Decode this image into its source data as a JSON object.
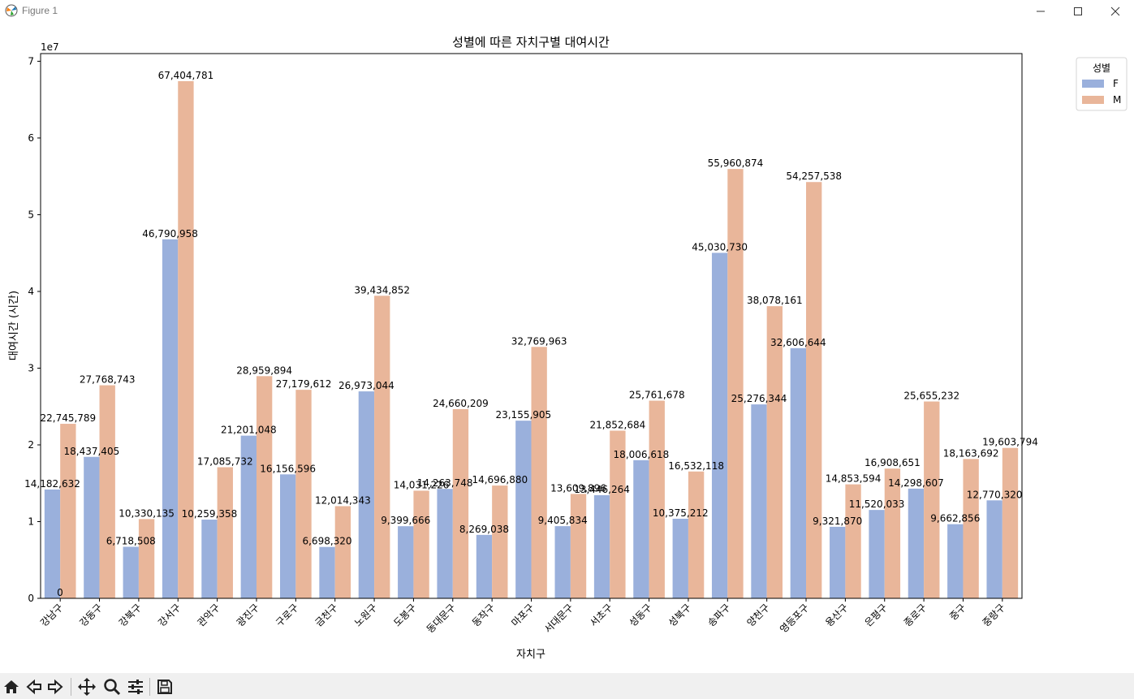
{
  "window": {
    "title": "Figure 1"
  },
  "colors": {
    "F": "#9ab0dc",
    "M": "#e9b69a"
  },
  "toolbar": {
    "buttons": [
      "home-icon",
      "back-icon",
      "forward-icon",
      "pan-icon",
      "zoom-icon",
      "configure-subplots-icon",
      "save-icon"
    ]
  },
  "chart_data": {
    "type": "bar",
    "title": "성별에 따른 자치구별 대여시간",
    "xlabel": "자치구",
    "ylabel": "대여시간 (시간)",
    "yscale_label": "1e7",
    "ylim": [
      0,
      71000000
    ],
    "yticks": [
      0,
      1,
      2,
      3,
      4,
      5,
      6,
      7
    ],
    "legend": {
      "title": "성별",
      "placement": "outside top-right"
    },
    "categories": [
      "강남구",
      "강동구",
      "강북구",
      "강서구",
      "관악구",
      "광진구",
      "구로구",
      "금천구",
      "노원구",
      "도봉구",
      "동대문구",
      "동작구",
      "마포구",
      "서대문구",
      "서초구",
      "성동구",
      "성북구",
      "송파구",
      "양천구",
      "영등포구",
      "용산구",
      "은평구",
      "종로구",
      "중구",
      "중랑구"
    ],
    "series": [
      {
        "name": "F",
        "values": [
          14182632,
          18437405,
          6718508,
          46790958,
          10259358,
          21201048,
          16156596,
          6698320,
          26973044,
          9399666,
          14263748,
          8269038,
          23155905,
          9405834,
          13446264,
          18006618,
          10375212,
          45030730,
          25276344,
          32606644,
          9321870,
          11520033,
          14298607,
          9662856,
          12770320
        ]
      },
      {
        "name": "M",
        "values": [
          22745789,
          27768743,
          10330135,
          67404781,
          17085732,
          28959894,
          27179612,
          12014343,
          39434852,
          14031226,
          24660209,
          14696880,
          32769963,
          13609896,
          21852684,
          25761678,
          16532118,
          55960874,
          38078161,
          54257538,
          14853594,
          16908651,
          25655232,
          18163692,
          19603794
        ]
      }
    ],
    "extra_labels": [
      "0"
    ],
    "grid": false
  }
}
